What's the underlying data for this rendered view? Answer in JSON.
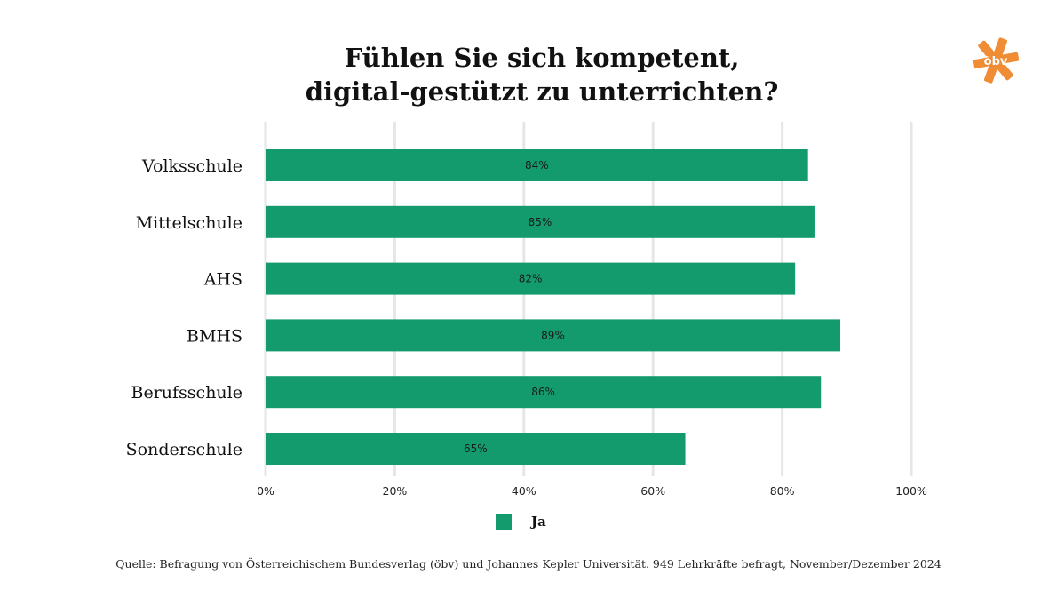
{
  "title_line1": "Fühlen Sie sich kompetent,",
  "title_line2": "digital-gestützt zu unterrichten?",
  "logo": {
    "text": "öbv",
    "color": "#f08c33"
  },
  "colors": {
    "bar": "#139b6e",
    "grid": "#e6e6e6"
  },
  "legend": {
    "label": "Ja"
  },
  "source": "Quelle: Befragung von Österreichischem Bundesverlag (öbv) und Johannes Kepler Universität. 949 Lehrkräfte befragt, November/Dezember 2024",
  "chart_data": {
    "type": "bar",
    "orientation": "horizontal",
    "categories": [
      "Volksschule",
      "Mittelschule",
      "AHS",
      "BMHS",
      "Berufsschule",
      "Sonderschule"
    ],
    "series": [
      {
        "name": "Ja",
        "values": [
          84,
          85,
          82,
          89,
          86,
          65
        ]
      }
    ],
    "value_labels": [
      "84%",
      "85%",
      "82%",
      "89%",
      "86%",
      "65%"
    ],
    "xlim": [
      0,
      100
    ],
    "x_ticks": [
      0,
      20,
      40,
      60,
      80,
      100
    ],
    "x_tick_labels": [
      "0%",
      "20%",
      "40%",
      "60%",
      "80%",
      "100%"
    ],
    "xlabel": "",
    "ylabel": "",
    "grid": true,
    "legend_position": "bottom"
  }
}
